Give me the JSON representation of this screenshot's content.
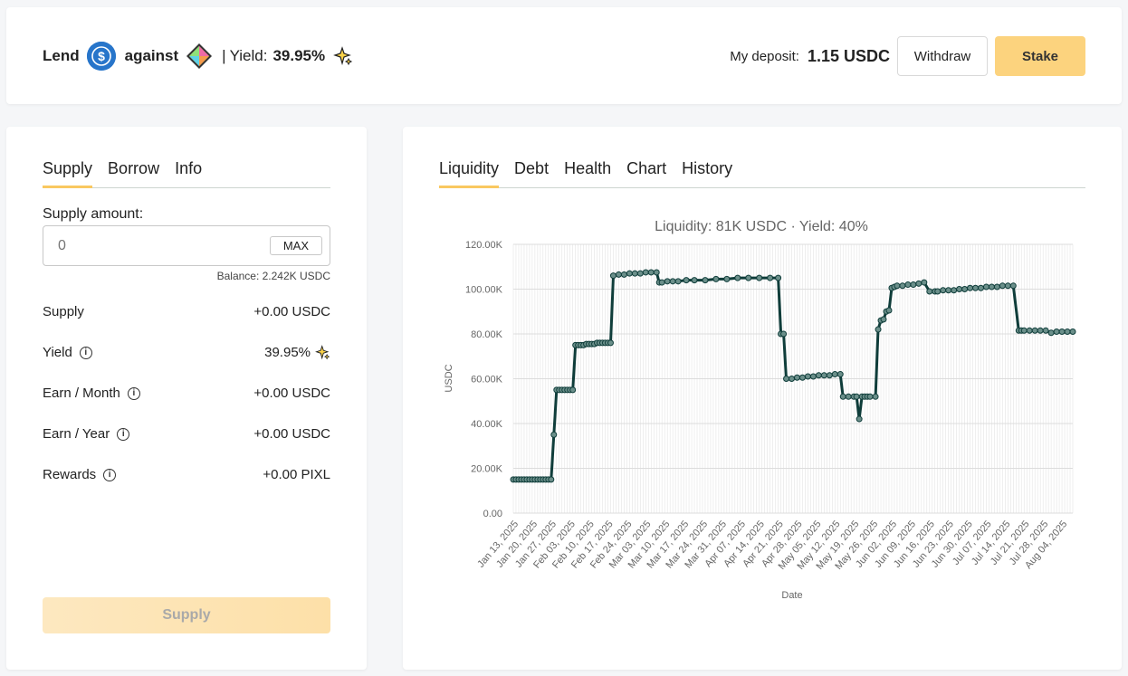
{
  "header": {
    "lend_label": "Lend",
    "against_label": "against",
    "separator": "|",
    "yield_label": "Yield:",
    "yield_value": "39.95%",
    "deposit_label": "My deposit:",
    "deposit_value": "1.15 USDC",
    "withdraw_label": "Withdraw",
    "stake_label": "Stake"
  },
  "left": {
    "tabs": [
      "Supply",
      "Borrow",
      "Info"
    ],
    "active_tab": "Supply",
    "supply_amount_label": "Supply amount:",
    "input_placeholder": "0",
    "max_label": "MAX",
    "balance": "Balance: 2.242K USDC",
    "stats": [
      {
        "label": "Supply",
        "value": "+0.00 USDC",
        "info": false,
        "sparkle": false
      },
      {
        "label": "Yield",
        "value": "39.95%",
        "info": true,
        "sparkle": true
      },
      {
        "label": "Earn / Month",
        "value": "+0.00 USDC",
        "info": true,
        "sparkle": false
      },
      {
        "label": "Earn / Year",
        "value": "+0.00 USDC",
        "info": true,
        "sparkle": false
      },
      {
        "label": "Rewards",
        "value": "+0.00 PIXL",
        "info": true,
        "sparkle": false
      }
    ],
    "supply_button": "Supply"
  },
  "right": {
    "tabs": [
      "Liquidity",
      "Debt",
      "Health",
      "Chart",
      "History"
    ],
    "active_tab": "Liquidity"
  },
  "colors": {
    "accent": "#fcd37e",
    "line": "#0f3d3a",
    "usdc": "#2775ca"
  },
  "chart_data": {
    "type": "line",
    "title": "Liquidity: 81K USDC · Yield: 40%",
    "xlabel": "Date",
    "ylabel": "USDC",
    "ylim": [
      0,
      120000
    ],
    "yticks": [
      "0.00",
      "20.00K",
      "40.00K",
      "60.00K",
      "80.00K",
      "100.00K",
      "120.00K"
    ],
    "xticks": [
      "Jan 13, 2025",
      "Jan 20, 2025",
      "Jan 27, 2025",
      "Feb 03, 2025",
      "Feb 10, 2025",
      "Feb 17, 2025",
      "Feb 24, 2025",
      "Mar 03, 2025",
      "Mar 10, 2025",
      "Mar 17, 2025",
      "Mar 24, 2025",
      "Mar 31, 2025",
      "Apr 07, 2025",
      "Apr 14, 2025",
      "Apr 21, 2025",
      "Apr 28, 2025",
      "May 05, 2025",
      "May 12, 2025",
      "May 19, 2025",
      "May 26, 2025",
      "Jun 02, 2025",
      "Jun 09, 2025",
      "Jun 16, 2025",
      "Jun 23, 2025",
      "Jun 30, 2025",
      "Jul 07, 2025",
      "Jul 14, 2025",
      "Jul 21, 2025",
      "Jul 28, 2025",
      "Aug 04, 2025"
    ],
    "grid": true,
    "series": [
      {
        "x": [
          "2025-01-12",
          "2025-01-13",
          "2025-01-14",
          "2025-01-15",
          "2025-01-16",
          "2025-01-17",
          "2025-01-18",
          "2025-01-19",
          "2025-01-20",
          "2025-01-21",
          "2025-01-22",
          "2025-01-23",
          "2025-01-24",
          "2025-01-25",
          "2025-01-26",
          "2025-01-27",
          "2025-01-28",
          "2025-01-29",
          "2025-01-30",
          "2025-01-31",
          "2025-02-01",
          "2025-02-02",
          "2025-02-03",
          "2025-02-04",
          "2025-02-05",
          "2025-02-06",
          "2025-02-07",
          "2025-02-08",
          "2025-02-09",
          "2025-02-10",
          "2025-02-11",
          "2025-02-12",
          "2025-02-13",
          "2025-02-14",
          "2025-02-15",
          "2025-02-16",
          "2025-02-17",
          "2025-02-18",
          "2025-02-20",
          "2025-02-22",
          "2025-02-24",
          "2025-02-26",
          "2025-02-28",
          "2025-03-02",
          "2025-03-04",
          "2025-03-06",
          "2025-03-07",
          "2025-03-08",
          "2025-03-10",
          "2025-03-12",
          "2025-03-14",
          "2025-03-17",
          "2025-03-20",
          "2025-03-24",
          "2025-03-28",
          "2025-04-01",
          "2025-04-05",
          "2025-04-09",
          "2025-04-13",
          "2025-04-17",
          "2025-04-20",
          "2025-04-21",
          "2025-04-22",
          "2025-04-23",
          "2025-04-25",
          "2025-04-27",
          "2025-04-29",
          "2025-05-01",
          "2025-05-03",
          "2025-05-05",
          "2025-05-07",
          "2025-05-09",
          "2025-05-11",
          "2025-05-13",
          "2025-05-14",
          "2025-05-16",
          "2025-05-18",
          "2025-05-19",
          "2025-05-20",
          "2025-05-21",
          "2025-05-22",
          "2025-05-23",
          "2025-05-24",
          "2025-05-26",
          "2025-05-27",
          "2025-05-28",
          "2025-05-29",
          "2025-05-30",
          "2025-05-31",
          "2025-06-01",
          "2025-06-02",
          "2025-06-03",
          "2025-06-05",
          "2025-06-07",
          "2025-06-09",
          "2025-06-11",
          "2025-06-13",
          "2025-06-15",
          "2025-06-17",
          "2025-06-18",
          "2025-06-20",
          "2025-06-22",
          "2025-06-24",
          "2025-06-26",
          "2025-06-28",
          "2025-06-30",
          "2025-07-02",
          "2025-07-04",
          "2025-07-06",
          "2025-07-08",
          "2025-07-10",
          "2025-07-12",
          "2025-07-14",
          "2025-07-16",
          "2025-07-18",
          "2025-07-19",
          "2025-07-20",
          "2025-07-22",
          "2025-07-24",
          "2025-07-26",
          "2025-07-28",
          "2025-07-30",
          "2025-08-01",
          "2025-08-03",
          "2025-08-05",
          "2025-08-07"
        ],
        "values": [
          15000,
          15000,
          15000,
          15000,
          15000,
          15000,
          15000,
          15000,
          15000,
          15000,
          15000,
          15000,
          15000,
          15000,
          15000,
          35000,
          55000,
          55000,
          55000,
          55000,
          55000,
          55000,
          55000,
          75000,
          75000,
          75000,
          75000,
          75500,
          75500,
          75500,
          75500,
          76000,
          76000,
          76000,
          76000,
          76000,
          76000,
          106000,
          106500,
          106500,
          107000,
          107000,
          107000,
          107500,
          107500,
          107500,
          103000,
          103000,
          103500,
          103500,
          103500,
          104000,
          104000,
          104000,
          104500,
          104500,
          105000,
          105000,
          105000,
          105000,
          105000,
          80000,
          80000,
          60000,
          60000,
          60500,
          60500,
          61000,
          61000,
          61500,
          61500,
          61500,
          62000,
          62000,
          52000,
          52000,
          52000,
          52000,
          42000,
          52000,
          52000,
          52000,
          52000,
          52000,
          82000,
          86000,
          86500,
          90000,
          90500,
          100500,
          101000,
          101500,
          101500,
          102000,
          102000,
          102500,
          103000,
          99000,
          99000,
          99000,
          99500,
          99500,
          99500,
          100000,
          100000,
          100500,
          100500,
          100500,
          101000,
          101000,
          101000,
          101500,
          101500,
          101500,
          81500,
          81500,
          81500,
          81500,
          81500,
          81500,
          81500,
          80500,
          81000,
          81000,
          81000,
          81000
        ]
      }
    ]
  }
}
